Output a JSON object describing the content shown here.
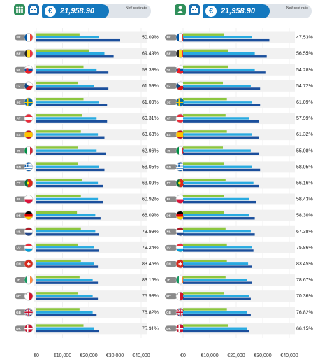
{
  "chart_data": [
    {
      "type": "bar",
      "header": {
        "value": "21,958.90",
        "net_label": "Net/ cost ratio"
      },
      "categories": [
        {
          "code": "FR",
          "flag": "fr"
        },
        {
          "code": "BE",
          "flag": "be"
        },
        {
          "code": "SK",
          "flag": "sk"
        },
        {
          "code": "CZ",
          "flag": "cz"
        },
        {
          "code": "SE",
          "flag": "se"
        },
        {
          "code": "AT",
          "flag": "at"
        },
        {
          "code": "ES",
          "flag": "es"
        },
        {
          "code": "IT",
          "flag": "it"
        },
        {
          "code": "GR",
          "flag": "gr"
        },
        {
          "code": "PT",
          "flag": "pt"
        },
        {
          "code": "PL",
          "flag": "pl"
        },
        {
          "code": "DE",
          "flag": "de"
        },
        {
          "code": "NL",
          "flag": "nl"
        },
        {
          "code": "LU",
          "flag": "lu"
        },
        {
          "code": "CH",
          "flag": "ch"
        },
        {
          "code": "IE",
          "flag": "ie"
        },
        {
          "code": "MT",
          "flag": "mt"
        },
        {
          "code": "GB",
          "flag": "gb"
        },
        {
          "code": "DK",
          "flag": "dk"
        }
      ],
      "series": [
        {
          "color": "#8cc63f",
          "values": [
            16500,
            20000,
            18000,
            16000,
            18000,
            17500,
            17000,
            16000,
            16000,
            17500,
            17000,
            15500,
            17000,
            16000,
            17000,
            16500,
            16000,
            16500,
            18000
          ]
        },
        {
          "color": "#29aae1",
          "values": [
            24000,
            26000,
            23000,
            22000,
            24000,
            23000,
            23500,
            23000,
            24000,
            23500,
            23500,
            22500,
            22500,
            22000,
            22000,
            21500,
            21500,
            21500,
            22000
          ]
        },
        {
          "color": "#1b4f9c",
          "values": [
            32000,
            29500,
            27500,
            27500,
            27000,
            27000,
            26000,
            26500,
            26000,
            25500,
            25500,
            24500,
            24000,
            24000,
            23500,
            23500,
            23500,
            23000,
            24000
          ]
        }
      ],
      "ratios": [
        "50.09%",
        "69.49%",
        "58.38%",
        "61.59%",
        "61.09%",
        "60.31%",
        "63.63%",
        "62.96%",
        "58.05%",
        "63.09%",
        "60.92%",
        "66.09%",
        "73.99%",
        "79.24%",
        "83.45%",
        "83.16%",
        "75.98%",
        "76.82%",
        "75.91%"
      ],
      "xticks": [
        "€0",
        "€10,000",
        "€20,000",
        "€30,000",
        "€40,000"
      ],
      "xlim": [
        0,
        40000
      ]
    },
    {
      "type": "bar",
      "header": {
        "value": "21,958.90",
        "net_label": "Net/ cost ratio"
      },
      "categories": [
        {
          "code": "FR",
          "flag": "fr"
        },
        {
          "code": "BE",
          "flag": "be"
        },
        {
          "code": "SK",
          "flag": "sk"
        },
        {
          "code": "CZ",
          "flag": "cz"
        },
        {
          "code": "SE",
          "flag": "se"
        },
        {
          "code": "AT",
          "flag": "at"
        },
        {
          "code": "ES",
          "flag": "es"
        },
        {
          "code": "IT",
          "flag": "it"
        },
        {
          "code": "GR",
          "flag": "gr"
        },
        {
          "code": "PT",
          "flag": "pt"
        },
        {
          "code": "PL",
          "flag": "pl"
        },
        {
          "code": "DE",
          "flag": "de"
        },
        {
          "code": "NL",
          "flag": "nl"
        },
        {
          "code": "LU",
          "flag": "lu"
        },
        {
          "code": "CH",
          "flag": "ch"
        },
        {
          "code": "IE",
          "flag": "ie"
        },
        {
          "code": "MT",
          "flag": "mt"
        },
        {
          "code": "GB",
          "flag": "gb"
        },
        {
          "code": "DK",
          "flag": "dk"
        }
      ],
      "series": [
        {
          "color": "#8cc63f",
          "values": [
            15500,
            17000,
            17000,
            15000,
            16500,
            16000,
            16500,
            15000,
            15500,
            16000,
            15500,
            15500,
            16000,
            16500,
            16500,
            16000,
            15500,
            16500,
            17000
          ]
        },
        {
          "color": "#29aae1",
          "values": [
            26000,
            27000,
            27000,
            25500,
            26000,
            25000,
            26000,
            25500,
            26000,
            26500,
            25000,
            25000,
            25500,
            26000,
            24500,
            24000,
            25000,
            24000,
            24000
          ]
        },
        {
          "color": "#1b4f9c",
          "values": [
            32500,
            31500,
            31000,
            29000,
            29000,
            28500,
            28500,
            28500,
            29000,
            28500,
            27500,
            27000,
            27000,
            26500,
            26000,
            26000,
            25500,
            25500,
            25000
          ]
        }
      ],
      "ratios": [
        "47.53%",
        "56.55%",
        "54.28%",
        "54.72%",
        "61.09%",
        "57.99%",
        "61.32%",
        "55.08%",
        "58.05%",
        "56.16%",
        "58.43%",
        "58.30%",
        "67.38%",
        "75.86%",
        "83.45%",
        "78.67%",
        "70.36%",
        "76.82%",
        "66.15%"
      ],
      "xticks": [
        "€0",
        "€10,000",
        "€20,000",
        "€30,000",
        "€40,000"
      ],
      "xlim": [
        0,
        40000
      ]
    }
  ]
}
